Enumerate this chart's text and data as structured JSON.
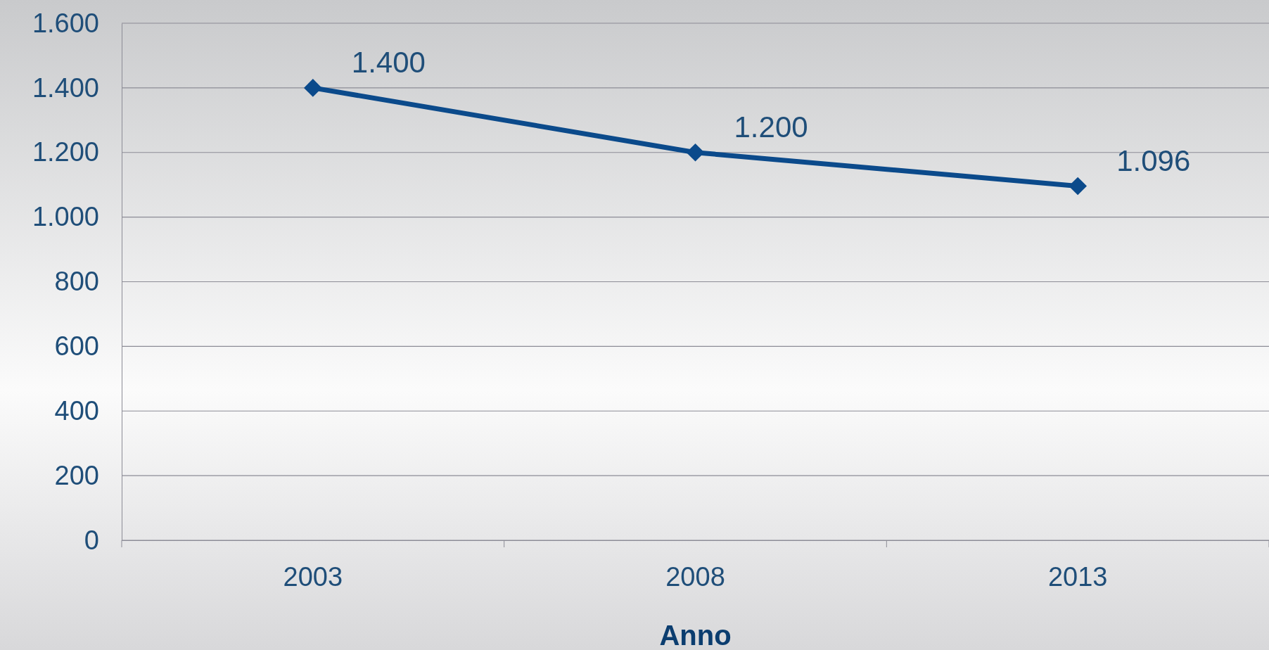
{
  "chart_data": {
    "type": "line",
    "xlabel": "Anno",
    "categories": [
      "2003",
      "2008",
      "2013"
    ],
    "series": [
      {
        "color": "#0b4a8b",
        "values": [
          1400,
          1200,
          1096
        ],
        "value_labels": [
          "1.400",
          "1.200",
          "1.096"
        ]
      }
    ],
    "ylim": [
      0,
      1600
    ],
    "yticks": [
      {
        "value": 0,
        "label": "0"
      },
      {
        "value": 200,
        "label": "200"
      },
      {
        "value": 400,
        "label": "400"
      },
      {
        "value": 600,
        "label": "600"
      },
      {
        "value": 800,
        "label": "800"
      },
      {
        "value": 1000,
        "label": "1.000"
      },
      {
        "value": 1200,
        "label": "1.200"
      },
      {
        "value": 1400,
        "label": "1.400"
      },
      {
        "value": 1600,
        "label": "1.600"
      }
    ],
    "grid": "y",
    "marker": "diamond",
    "line_style": "solid"
  }
}
